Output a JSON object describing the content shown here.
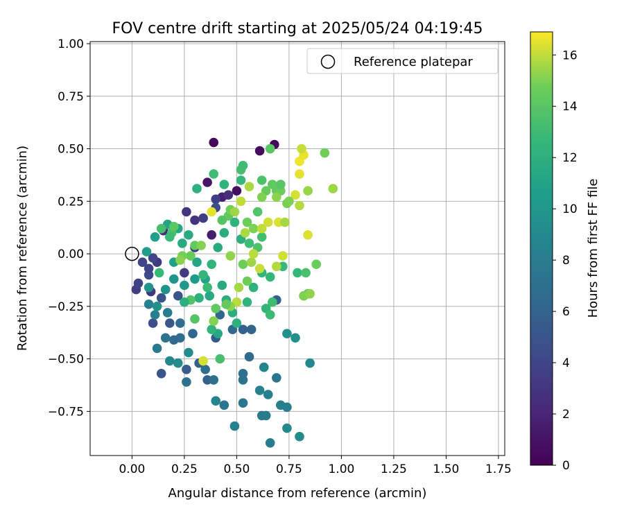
{
  "chart_data": {
    "type": "scatter",
    "title": "FOV centre drift starting at 2025/05/24 04:19:45",
    "xlabel": "Angular distance from reference (arcmin)",
    "ylabel": "Rotation from reference (arcmin)",
    "xlim": [
      -0.2,
      1.78
    ],
    "ylim": [
      -0.96,
      1.01
    ],
    "xticks": [
      0.0,
      0.25,
      0.5,
      0.75,
      1.0,
      1.25,
      1.5,
      1.75
    ],
    "xtick_labels": [
      "0.00",
      "0.25",
      "0.50",
      "0.75",
      "1.00",
      "1.25",
      "1.50",
      "1.75"
    ],
    "yticks": [
      -0.75,
      -0.5,
      -0.25,
      0.0,
      0.25,
      0.5,
      0.75,
      1.0
    ],
    "ytick_labels": [
      "−0.75",
      "−0.50",
      "−0.25",
      "0.00",
      "0.25",
      "0.50",
      "0.75",
      "1.00"
    ],
    "grid": true,
    "legend": {
      "placement": "top-right",
      "entries": [
        {
          "label": "Reference platepar",
          "marker": "open-circle"
        }
      ]
    },
    "colorbar": {
      "label": "Hours from first FF file",
      "colormap": "viridis",
      "range": [
        0,
        16.9
      ],
      "ticks": [
        0,
        2,
        4,
        6,
        8,
        10,
        12,
        14,
        16
      ],
      "tick_labels": [
        "0",
        "2",
        "4",
        "6",
        "8",
        "10",
        "12",
        "14",
        "16"
      ]
    },
    "reference": {
      "x": 0.0,
      "y": 0.0
    },
    "series": [
      {
        "points": [
          [
            0.39,
            0.53,
            0.4
          ],
          [
            0.61,
            0.49,
            0.6
          ],
          [
            0.68,
            0.52,
            0.3
          ],
          [
            0.36,
            0.34,
            1.1
          ],
          [
            0.5,
            0.3,
            0.8
          ],
          [
            0.43,
            0.27,
            1.7
          ],
          [
            0.46,
            0.28,
            2.5
          ],
          [
            0.38,
            0.09,
            1.6
          ],
          [
            0.09,
            -0.18,
            3.1
          ],
          [
            0.12,
            -0.04,
            3.2
          ],
          [
            0.02,
            -0.17,
            3.6
          ],
          [
            0.03,
            -0.14,
            3.8
          ],
          [
            0.05,
            -0.04,
            4.0
          ],
          [
            0.08,
            -0.1,
            4.3
          ],
          [
            0.1,
            -0.02,
            4.1
          ],
          [
            0.08,
            -0.07,
            3.9
          ],
          [
            0.15,
            0.11,
            2.3
          ],
          [
            0.26,
            0.2,
            2.8
          ],
          [
            0.3,
            0.16,
            2.9
          ],
          [
            0.34,
            0.17,
            3.4
          ],
          [
            0.4,
            0.26,
            3.6
          ],
          [
            0.4,
            0.22,
            4.4
          ],
          [
            0.3,
            0.03,
            3.0
          ],
          [
            0.25,
            -0.09,
            3.3
          ],
          [
            0.1,
            -0.33,
            4.6
          ],
          [
            0.14,
            -0.21,
            4.8
          ],
          [
            0.14,
            -0.57,
            5.0
          ],
          [
            0.18,
            -0.33,
            5.2
          ],
          [
            0.22,
            -0.2,
            5.1
          ],
          [
            0.26,
            -0.55,
            5.6
          ],
          [
            0.32,
            -0.52,
            5.8
          ],
          [
            0.36,
            -0.6,
            6.0
          ],
          [
            0.4,
            -0.4,
            5.4
          ],
          [
            0.42,
            -0.29,
            6.2
          ],
          [
            0.45,
            -0.24,
            5.5
          ],
          [
            0.48,
            -0.36,
            6.4
          ],
          [
            0.53,
            -0.36,
            5.9
          ],
          [
            0.57,
            -0.36,
            6.1
          ],
          [
            0.56,
            -0.49,
            6.6
          ],
          [
            0.69,
            -0.22,
            5.7
          ],
          [
            0.53,
            -0.57,
            7.0
          ],
          [
            0.53,
            -0.6,
            7.2
          ],
          [
            0.39,
            -0.6,
            7.0
          ],
          [
            0.44,
            -0.72,
            7.4
          ],
          [
            0.53,
            -0.71,
            7.6
          ],
          [
            0.62,
            -0.77,
            7.8
          ],
          [
            0.64,
            -0.77,
            8.0
          ],
          [
            0.71,
            -0.72,
            8.1
          ],
          [
            0.74,
            -0.73,
            8.2
          ],
          [
            0.66,
            -0.9,
            7.9
          ],
          [
            0.49,
            -0.82,
            8.4
          ],
          [
            0.4,
            -0.7,
            8.6
          ],
          [
            0.65,
            -0.67,
            8.3
          ],
          [
            0.61,
            -0.65,
            8.5
          ],
          [
            0.69,
            -0.59,
            7.5
          ],
          [
            0.63,
            -0.54,
            8.7
          ],
          [
            0.85,
            -0.52,
            8.9
          ],
          [
            0.74,
            -0.83,
            9.0
          ],
          [
            0.8,
            -0.87,
            9.2
          ],
          [
            0.78,
            -0.4,
            9.4
          ],
          [
            0.74,
            -0.38,
            9.6
          ],
          [
            0.26,
            -0.61,
            7.1
          ],
          [
            0.35,
            -0.55,
            6.9
          ],
          [
            0.2,
            -0.41,
            6.5
          ],
          [
            0.23,
            -0.4,
            6.7
          ],
          [
            0.16,
            -0.4,
            7.3
          ],
          [
            0.12,
            -0.45,
            7.7
          ],
          [
            0.18,
            -0.51,
            8.8
          ],
          [
            0.22,
            -0.52,
            9.1
          ],
          [
            0.27,
            -0.47,
            9.3
          ],
          [
            0.29,
            -0.38,
            6.3
          ],
          [
            0.23,
            -0.33,
            6.8
          ],
          [
            0.17,
            -0.28,
            7.9
          ],
          [
            0.11,
            -0.29,
            8.1
          ],
          [
            0.08,
            -0.24,
            8.3
          ],
          [
            0.12,
            -0.25,
            9.5
          ],
          [
            0.16,
            -0.17,
            9.7
          ],
          [
            0.2,
            -0.12,
            9.9
          ],
          [
            0.25,
            -0.15,
            10.1
          ],
          [
            0.3,
            -0.12,
            10.3
          ],
          [
            0.08,
            -0.16,
            9.8
          ],
          [
            0.07,
            0.01,
            10.5
          ],
          [
            0.11,
            0.08,
            10.7
          ],
          [
            0.17,
            0.14,
            11.0
          ],
          [
            0.22,
            0.12,
            11.2
          ],
          [
            0.24,
            0.05,
            11.4
          ],
          [
            0.27,
            0.09,
            11.6
          ],
          [
            0.2,
            -0.04,
            10.8
          ],
          [
            0.31,
            -0.04,
            11.1
          ],
          [
            0.35,
            -0.12,
            10.9
          ],
          [
            0.37,
            -0.2,
            11.3
          ],
          [
            0.43,
            -0.15,
            11.5
          ],
          [
            0.45,
            -0.22,
            11.7
          ],
          [
            0.48,
            -0.28,
            11.9
          ],
          [
            0.5,
            -0.33,
            12.1
          ],
          [
            0.55,
            -0.23,
            12.3
          ],
          [
            0.58,
            -0.16,
            12.2
          ],
          [
            0.62,
            -0.09,
            12.4
          ],
          [
            0.66,
            -0.11,
            12.6
          ],
          [
            0.72,
            -0.06,
            12.8
          ],
          [
            0.64,
            -0.26,
            12.5
          ],
          [
            0.66,
            -0.29,
            12.9
          ],
          [
            0.67,
            -0.23,
            13.1
          ],
          [
            0.79,
            -0.09,
            12.7
          ],
          [
            0.82,
            -0.2,
            13.3
          ],
          [
            0.83,
            -0.09,
            13.5
          ],
          [
            0.84,
            -0.19,
            13.8
          ],
          [
            0.62,
            0.08,
            13.2
          ],
          [
            0.6,
            0.03,
            13.6
          ],
          [
            0.56,
            0.05,
            13.0
          ],
          [
            0.52,
            0.07,
            12.0
          ],
          [
            0.49,
            0.15,
            12.2
          ],
          [
            0.44,
            0.1,
            11.8
          ],
          [
            0.41,
            0.03,
            11.6
          ],
          [
            0.38,
            -0.05,
            12.4
          ],
          [
            0.34,
            -0.1,
            12.6
          ],
          [
            0.32,
            -0.21,
            12.0
          ],
          [
            0.3,
            -0.31,
            13.9
          ],
          [
            0.28,
            -0.22,
            13.7
          ],
          [
            0.25,
            -0.23,
            11.9
          ],
          [
            0.4,
            -0.26,
            14.2
          ],
          [
            0.41,
            -0.38,
            11.3
          ],
          [
            0.42,
            -0.5,
            13.4
          ],
          [
            0.38,
            -0.36,
            12.5
          ],
          [
            0.36,
            -0.16,
            12.9
          ],
          [
            0.31,
            0.31,
            12.1
          ],
          [
            0.39,
            0.38,
            13.0
          ],
          [
            0.44,
            0.33,
            12.3
          ],
          [
            0.52,
            0.35,
            12.7
          ],
          [
            0.52,
            0.4,
            13.4
          ],
          [
            0.53,
            0.42,
            13.1
          ],
          [
            0.62,
            0.35,
            13.6
          ],
          [
            0.66,
            0.5,
            14.0
          ],
          [
            0.69,
            0.3,
            14.4
          ],
          [
            0.6,
            0.2,
            13.8
          ],
          [
            0.55,
            0.15,
            14.6
          ],
          [
            0.58,
            0.12,
            15.0
          ],
          [
            0.46,
            0.18,
            14.2
          ],
          [
            0.47,
            0.21,
            14.8
          ],
          [
            0.43,
            0.16,
            13.9
          ],
          [
            0.3,
            0.04,
            14.3
          ],
          [
            0.33,
            0.04,
            15.1
          ],
          [
            0.28,
            -0.01,
            14.5
          ],
          [
            0.24,
            -0.01,
            14.9
          ],
          [
            0.23,
            -0.03,
            15.2
          ],
          [
            0.13,
            -0.09,
            12.8
          ],
          [
            0.14,
            0.12,
            13.3
          ],
          [
            0.19,
            0.1,
            13.5
          ],
          [
            0.2,
            0.13,
            14.1
          ],
          [
            0.18,
            0.08,
            12.9
          ],
          [
            0.53,
            -0.05,
            14.7
          ],
          [
            0.47,
            -0.01,
            15.3
          ],
          [
            0.57,
            -0.04,
            15.5
          ],
          [
            0.54,
            0.1,
            15.7
          ],
          [
            0.58,
            0.0,
            15.9
          ],
          [
            0.62,
            0.12,
            16.0
          ],
          [
            0.65,
            0.15,
            16.2
          ],
          [
            0.7,
            0.15,
            16.4
          ],
          [
            0.73,
            0.15,
            15.6
          ],
          [
            0.75,
            0.25,
            16.1
          ],
          [
            0.78,
            0.28,
            16.3
          ],
          [
            0.8,
            0.38,
            16.5
          ],
          [
            0.8,
            0.44,
            16.7
          ],
          [
            0.82,
            0.47,
            16.6
          ],
          [
            0.81,
            0.5,
            16.1
          ],
          [
            0.8,
            0.23,
            15.8
          ],
          [
            0.84,
            0.3,
            15.4
          ],
          [
            0.74,
            0.24,
            14.9
          ],
          [
            0.71,
            0.3,
            14.6
          ],
          [
            0.69,
            0.27,
            15.2
          ],
          [
            0.67,
            0.33,
            14.3
          ],
          [
            0.64,
            0.3,
            14.5
          ],
          [
            0.62,
            0.27,
            15.0
          ],
          [
            0.56,
            0.32,
            15.7
          ],
          [
            0.52,
            0.25,
            16.0
          ],
          [
            0.49,
            0.2,
            15.5
          ],
          [
            0.84,
            0.09,
            16.4
          ],
          [
            0.82,
            -0.2,
            15.0
          ],
          [
            0.85,
            -0.19,
            15.3
          ],
          [
            0.72,
            -0.01,
            16.2
          ],
          [
            0.69,
            -0.06,
            15.8
          ],
          [
            0.61,
            -0.07,
            16.1
          ],
          [
            0.55,
            -0.13,
            14.7
          ],
          [
            0.51,
            -0.16,
            15.6
          ],
          [
            0.5,
            -0.23,
            15.9
          ],
          [
            0.47,
            -0.25,
            15.2
          ],
          [
            0.45,
            -0.24,
            14.4
          ],
          [
            0.39,
            -0.32,
            15.1
          ],
          [
            0.34,
            -0.51,
            16.3
          ],
          [
            0.38,
            0.2,
            16.5
          ],
          [
            0.88,
            -0.05,
            14.6
          ],
          [
            0.92,
            0.48,
            14.8
          ],
          [
            0.96,
            0.31,
            15.5
          ],
          [
            0.75,
            0.25,
            15.0
          ],
          [
            0.71,
            0.33,
            14.0
          ]
        ]
      }
    ]
  }
}
